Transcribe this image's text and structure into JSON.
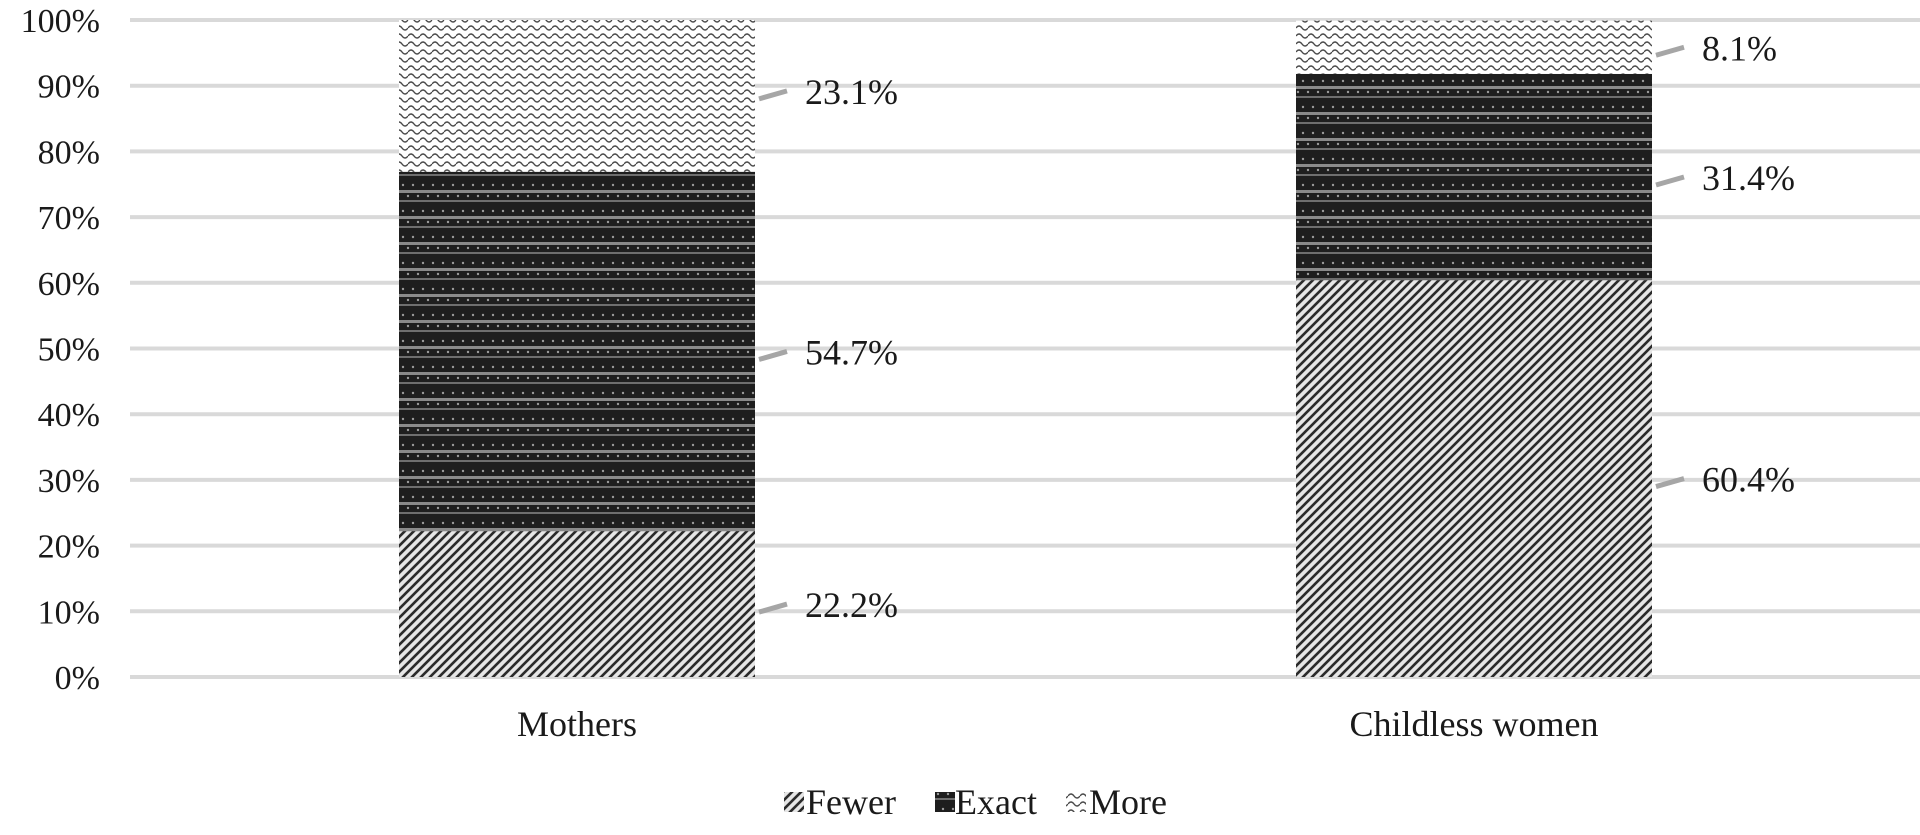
{
  "chart_data": {
    "type": "bar",
    "stacked": true,
    "percent": true,
    "title": "",
    "xlabel": "",
    "ylabel": "",
    "ylim": [
      0,
      100
    ],
    "yticks": [
      "0%",
      "10%",
      "20%",
      "30%",
      "40%",
      "50%",
      "60%",
      "70%",
      "80%",
      "90%",
      "100%"
    ],
    "grid": true,
    "legend_position": "bottom",
    "categories": [
      "Mothers",
      "Childless women"
    ],
    "series": [
      {
        "name": "Fewer",
        "values": [
          22.2,
          60.4
        ],
        "labels": [
          "22.2%",
          "60.4%"
        ],
        "pattern": "diagonal-hatch"
      },
      {
        "name": "Exact",
        "values": [
          54.7,
          31.4
        ],
        "labels": [
          "54.7%",
          "31.4%"
        ],
        "pattern": "dark-dotted-bands"
      },
      {
        "name": "More",
        "values": [
          23.1,
          8.1
        ],
        "labels": [
          "23.1%",
          "8.1%"
        ],
        "pattern": "light-wave"
      }
    ],
    "colors": {
      "grid": "#d9d9d9",
      "leader": "#a6a6a6",
      "text": "#1a1a1a"
    }
  }
}
